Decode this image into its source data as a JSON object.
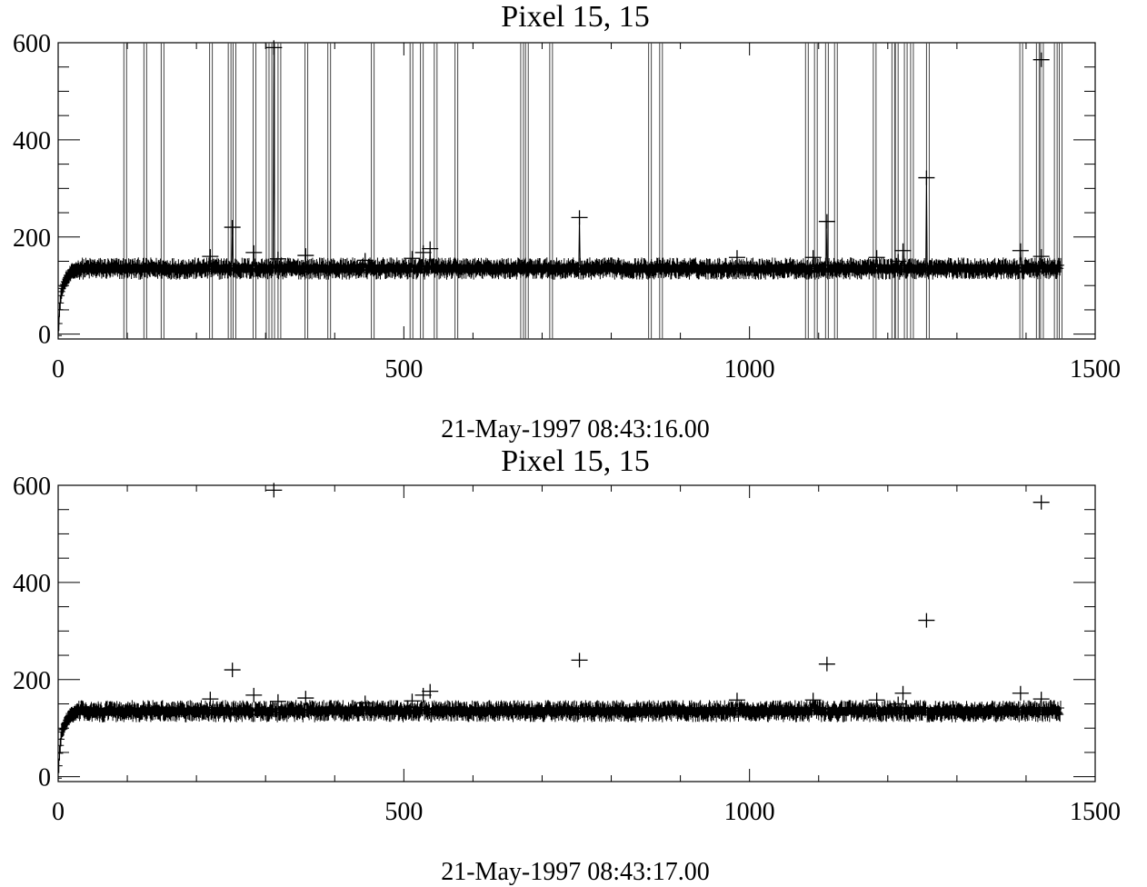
{
  "chart_data": [
    {
      "type": "line",
      "title": "Pixel 15, 15",
      "xlabel": "21-May-1997 08:43:16.00",
      "ylabel": "",
      "xlim": [
        0,
        1500
      ],
      "ylim": [
        -10,
        600
      ],
      "x_ticks": [
        0,
        500,
        1000,
        1500
      ],
      "y_ticks": [
        0,
        200,
        400,
        600
      ],
      "grid": false,
      "series": [
        {
          "marker": "plus",
          "connected": true,
          "baseline": {
            "x_start": 0,
            "x_end": 1450,
            "ramp": [
              [
                0,
                0
              ],
              [
                2,
                50
              ],
              [
                5,
                90
              ],
              [
                10,
                110
              ],
              [
                20,
                128
              ],
              [
                30,
                135
              ]
            ],
            "plateau": 135,
            "noise_half_range": 8
          },
          "outliers": [
            [
              312,
              590
            ],
            [
              1422,
              565
            ],
            [
              1256,
              322
            ],
            [
              754,
              240
            ],
            [
              1112,
              232
            ],
            [
              252,
              220
            ],
            [
              538,
              176
            ],
            [
              1392,
              172
            ],
            [
              1222,
              172
            ],
            [
              283,
              168
            ],
            [
              528,
              168
            ],
            [
              358,
              162
            ],
            [
              220,
              160
            ],
            [
              982,
              158
            ],
            [
              1092,
              158
            ],
            [
              1184,
              158
            ],
            [
              1422,
              160
            ],
            [
              512,
              156
            ],
            [
              444,
              152
            ],
            [
              318,
              155
            ],
            [
              1215,
              150
            ]
          ]
        }
      ],
      "vertical_lines_x": [
        97,
        126,
        151,
        221,
        248,
        255,
        284,
        303,
        311,
        320,
        359,
        392,
        455,
        511,
        526,
        546,
        576,
        671,
        678,
        713,
        856,
        872,
        1083,
        1096,
        1112,
        1125,
        1181,
        1208,
        1213,
        1226,
        1235,
        1258,
        1393,
        1417,
        1423,
        1443,
        1450
      ]
    },
    {
      "type": "scatter",
      "title": "Pixel 15, 15",
      "xlabel": "21-May-1997 08:43:17.00",
      "ylabel": "",
      "xlim": [
        0,
        1500
      ],
      "ylim": [
        -10,
        600
      ],
      "x_ticks": [
        0,
        500,
        1000,
        1500
      ],
      "y_ticks": [
        0,
        200,
        400,
        600
      ],
      "grid": false,
      "series": [
        {
          "marker": "plus",
          "connected": false,
          "baseline": {
            "x_start": 0,
            "x_end": 1450,
            "ramp": [
              [
                0,
                0
              ],
              [
                2,
                50
              ],
              [
                5,
                90
              ],
              [
                10,
                110
              ],
              [
                20,
                128
              ],
              [
                30,
                135
              ]
            ],
            "plateau": 135,
            "noise_half_range": 8
          },
          "outliers": [
            [
              312,
              590
            ],
            [
              1422,
              565
            ],
            [
              1256,
              322
            ],
            [
              754,
              240
            ],
            [
              1112,
              232
            ],
            [
              252,
              220
            ],
            [
              538,
              176
            ],
            [
              1392,
              172
            ],
            [
              1222,
              172
            ],
            [
              283,
              168
            ],
            [
              528,
              168
            ],
            [
              358,
              162
            ],
            [
              220,
              160
            ],
            [
              982,
              158
            ],
            [
              1092,
              158
            ],
            [
              1184,
              158
            ],
            [
              1422,
              160
            ],
            [
              512,
              156
            ],
            [
              444,
              152
            ],
            [
              318,
              155
            ],
            [
              1215,
              150
            ]
          ]
        }
      ]
    }
  ]
}
